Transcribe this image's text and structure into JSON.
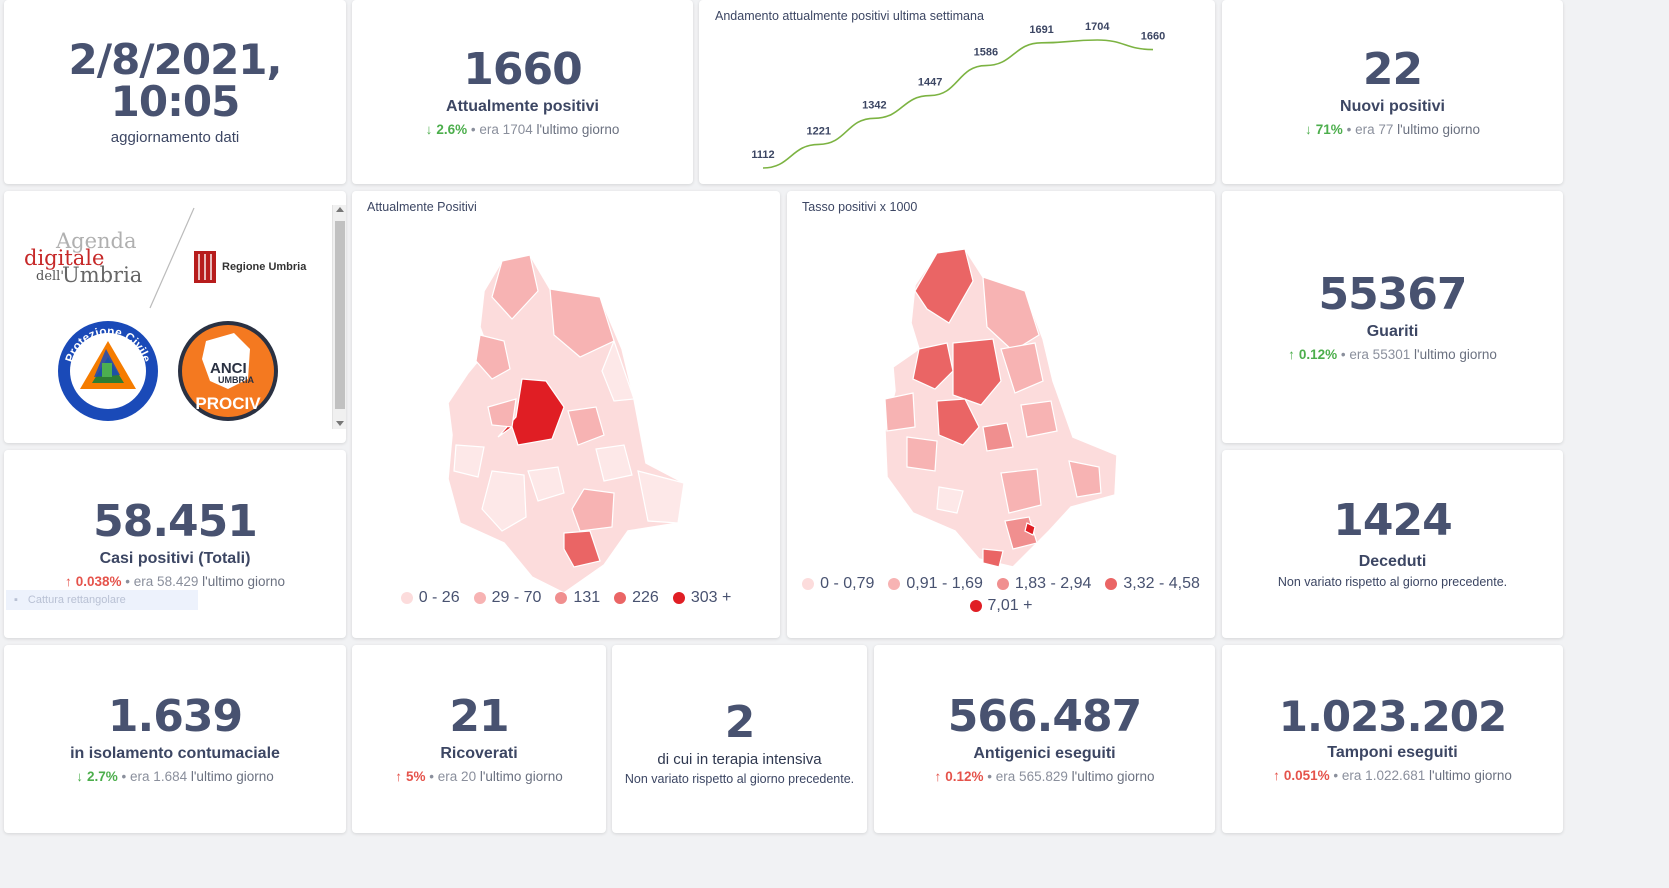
{
  "update": {
    "datetime": "2/8/2021, 10:05",
    "label": "aggiornamento dati"
  },
  "attualmente_positivi": {
    "value": "1660",
    "label": "Attualmente positivi",
    "arrow": "↓",
    "pct": "2.6%",
    "bullet": "•",
    "prev": "era 1704",
    "suffix": "l'ultimo giorno"
  },
  "nuovi_positivi": {
    "value": "22",
    "label": "Nuovi positivi",
    "arrow": "↓",
    "pct": "71%",
    "bullet": "•",
    "prev": "era 77",
    "suffix": "l'ultimo giorno"
  },
  "guariti": {
    "value": "55367",
    "label": "Guariti",
    "arrow": "↑",
    "pct": "0.12%",
    "bullet": "•",
    "prev": "era 55301",
    "suffix": "l'ultimo giorno"
  },
  "casi_totali": {
    "value": "58.451",
    "label": "Casi positivi (Totali)",
    "arrow": "↑",
    "pct": "0.038%",
    "bullet": "•",
    "prev": "era 58.429",
    "suffix": "l'ultimo giorno",
    "overlay": "Cattura rettangolare"
  },
  "deceduti": {
    "value": "1424",
    "label": "Deceduti",
    "note": "Non variato rispetto al giorno precedente."
  },
  "isolamento": {
    "value": "1.639",
    "label": "in isolamento contumaciale",
    "arrow": "↓",
    "pct": "2.7%",
    "bullet": "•",
    "prev": "era 1.684",
    "suffix": "l'ultimo giorno"
  },
  "ricoverati": {
    "value": "21",
    "label": "Ricoverati",
    "arrow": "↑",
    "pct": "5%",
    "bullet": "•",
    "prev": "era 20",
    "suffix": "l'ultimo giorno"
  },
  "terapia_intensiva": {
    "value": "2",
    "label": "di cui in terapia intensiva",
    "note": "Non variato rispetto al giorno precedente."
  },
  "antigenici": {
    "value": "566.487",
    "label": "Antigenici eseguiti",
    "arrow": "↑",
    "pct": "0.12%",
    "bullet": "•",
    "prev": "era 565.829",
    "suffix": "l'ultimo giorno"
  },
  "tamponi": {
    "value": "1.023.202",
    "label": "Tamponi eseguiti",
    "arrow": "↑",
    "pct": "0.051%",
    "bullet": "•",
    "prev": "era 1.022.681",
    "suffix": "l'ultimo giorno"
  },
  "logos": {
    "agenda_line1": "Agenda",
    "agenda_line2": "digitale",
    "agenda_line3a": "dell'",
    "agenda_line3b": "Umbria",
    "regione": "Regione Umbria",
    "protezione_civile": "Protezione Civile",
    "protezione_regione": "Regione Umbria",
    "anci": "ANCI",
    "anci_umbria": "UMBRIA",
    "prociv": "PROCIV"
  },
  "map_positivi": {
    "title": "Attualmente Positivi",
    "legend": [
      {
        "label": "0 - 26",
        "color": "#fcdcdc"
      },
      {
        "label": "29 - 70",
        "color": "#f7b3b3"
      },
      {
        "label": "131",
        "color": "#f08f8f"
      },
      {
        "label": "226",
        "color": "#ea6565"
      },
      {
        "label": "303 +",
        "color": "#e01e24"
      }
    ]
  },
  "map_tasso": {
    "title": "Tasso positivi x 1000",
    "legend": [
      {
        "label": "0 - 0,79",
        "color": "#fcdcdc"
      },
      {
        "label": "0,91 - 1,69",
        "color": "#f7b3b3"
      },
      {
        "label": "1,83 - 2,94",
        "color": "#f08f8f"
      },
      {
        "label": "3,32 - 4,58",
        "color": "#ea6565"
      },
      {
        "label": "7,01 +",
        "color": "#e01e24"
      }
    ]
  },
  "chart_data": {
    "type": "line",
    "title": "Andamento attualmente positivi ultima settimana",
    "values": [
      1112,
      1221,
      1342,
      1447,
      1586,
      1691,
      1704,
      1660
    ],
    "labels": [
      "1112",
      "1221",
      "1342",
      "1447",
      "1586",
      "1691",
      "1704",
      "1660"
    ],
    "line_color": "#7cb342",
    "grid": false,
    "legend": "none"
  }
}
